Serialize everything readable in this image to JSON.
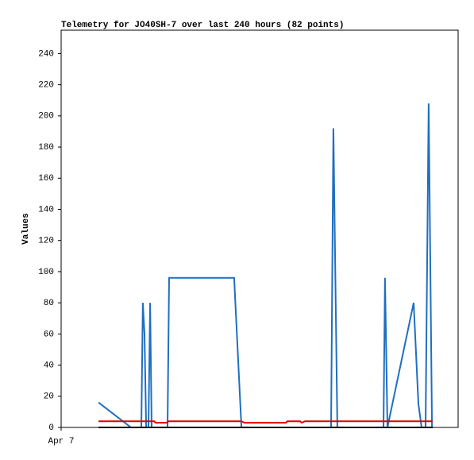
{
  "chart_data": {
    "type": "line",
    "title": "Telemetry for JO40SH-7 over last 240 hours (82 points)",
    "y_label": "Values",
    "xlim": [
      0,
      240
    ],
    "xticks": [
      {
        "value": 0,
        "label": "Apr 7"
      }
    ],
    "ylim": [
      0,
      255
    ],
    "yticks": [
      0,
      20,
      40,
      60,
      80,
      100,
      120,
      140,
      160,
      180,
      200,
      220,
      240
    ],
    "grid": false,
    "series": [
      {
        "color": "#1f6fc0",
        "x": [
          22.6,
          42.2,
          48.5,
          49.4,
          50.4,
          51.4,
          52.8,
          53.8,
          54.7,
          64.3,
          65.3,
          104.6,
          109,
          163.2,
          164.6,
          167,
          194.9,
          195.8,
          197.3,
          213.1,
          216,
          217.9,
          220.3,
          222.2,
          224.2
        ],
        "values": [
          16,
          0,
          0,
          80,
          60,
          0,
          0,
          80,
          0,
          0,
          96,
          96,
          0,
          0,
          192,
          0,
          0,
          96,
          0,
          80,
          15,
          0,
          0,
          208,
          0
        ]
      },
      {
        "color": "#e00000",
        "x": [
          22.6,
          56.2,
          57.1,
          63.8,
          64.8,
          109,
          110.9,
          135.8,
          136.8,
          144.5,
          145.4,
          147.4,
          224.6
        ],
        "values": [
          4,
          4,
          3,
          3,
          4,
          4,
          3,
          3,
          4,
          4,
          3,
          4,
          4
        ]
      },
      {
        "color": "#000000",
        "x": [
          22.6,
          224.6
        ],
        "values": [
          0,
          0
        ]
      }
    ]
  }
}
